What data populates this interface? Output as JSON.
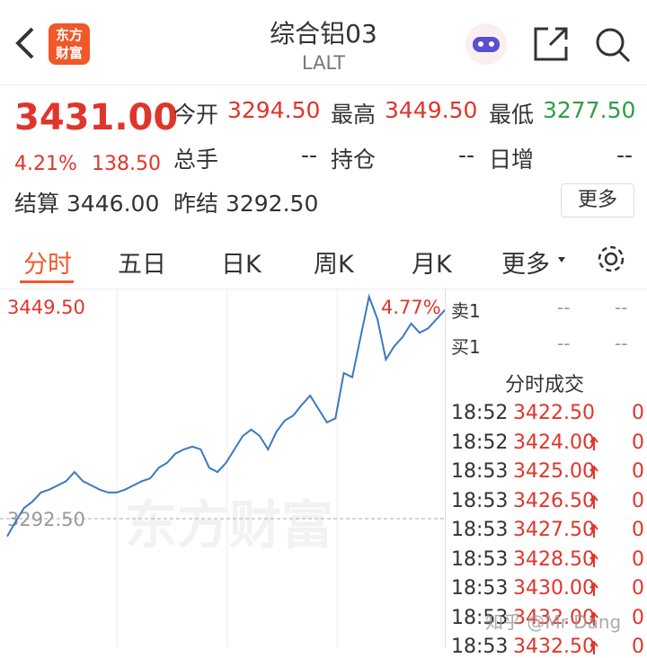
{
  "header": {
    "logo": [
      "东方",
      "财富"
    ],
    "title": "综合铝03",
    "code": "LALT"
  },
  "quote": {
    "price": "3431.00",
    "change_pct": "4.21%",
    "change": "138.50",
    "stats": [
      [
        "今开",
        "3294.50"
      ],
      [
        "最高",
        "3449.50"
      ],
      [
        "最低",
        "3277.50"
      ],
      [
        "总手",
        "--"
      ],
      [
        "持仓",
        "--"
      ],
      [
        "日增",
        "--"
      ]
    ],
    "settle": [
      "结算",
      "3446.00"
    ],
    "prev_settle": [
      "昨结",
      "3292.50"
    ],
    "more": "更多"
  },
  "tabs": [
    "分时",
    "五日",
    "日K",
    "周K",
    "月K",
    "更多"
  ],
  "chart_data": {
    "type": "line",
    "color": "#3b78c0",
    "values": [
      3280,
      3290.5,
      3300,
      3304.5,
      3311,
      3313,
      3316,
      3319,
      3325.5,
      3319,
      3316,
      3313,
      3311,
      3311,
      3313,
      3316,
      3319,
      3321,
      3328.5,
      3332,
      3338.5,
      3341.5,
      3343.5,
      3341.5,
      3328.5,
      3325.5,
      3332,
      3341.5,
      3351,
      3355.5,
      3351,
      3341.5,
      3354,
      3362,
      3365.5,
      3373,
      3379.5,
      3370,
      3360.5,
      3363.5,
      3395.5,
      3392.5,
      3421,
      3449.5,
      3433.5,
      3405,
      3414.5,
      3421,
      3430.5,
      3424,
      3427,
      3433.5,
      3440
    ],
    "ylim": [
      3135.5,
      3449.5
    ],
    "yticks": [
      {
        "value": 3292.5,
        "label": "3292.50"
      },
      {
        "value": 3449.5,
        "label": "3449.50"
      }
    ],
    "annotation": "4.77%",
    "watermark": "东方财富"
  },
  "order_book": [
    [
      "卖1",
      "--",
      "--"
    ],
    [
      "买1",
      "--",
      "--"
    ]
  ],
  "trades": {
    "title": "分时成交",
    "rows": [
      {
        "time": "18:52",
        "price": "3422.50",
        "volume": "0",
        "up": false
      },
      {
        "time": "18:52",
        "price": "3424.00",
        "volume": "0",
        "up": true
      },
      {
        "time": "18:53",
        "price": "3425.00",
        "volume": "0",
        "up": true
      },
      {
        "time": "18:53",
        "price": "3426.50",
        "volume": "0",
        "up": true
      },
      {
        "time": "18:53",
        "price": "3427.50",
        "volume": "0",
        "up": true
      },
      {
        "time": "18:53",
        "price": "3428.50",
        "volume": "0",
        "up": true
      },
      {
        "time": "18:53",
        "price": "3430.00",
        "volume": "0",
        "up": true
      },
      {
        "time": "18:53",
        "price": "3432.00",
        "volume": "0",
        "up": true
      },
      {
        "time": "18:53",
        "price": "3432.50",
        "volume": "0",
        "up": true
      }
    ]
  },
  "footer": {
    "watermark": "知乎 @Mr Dang"
  }
}
